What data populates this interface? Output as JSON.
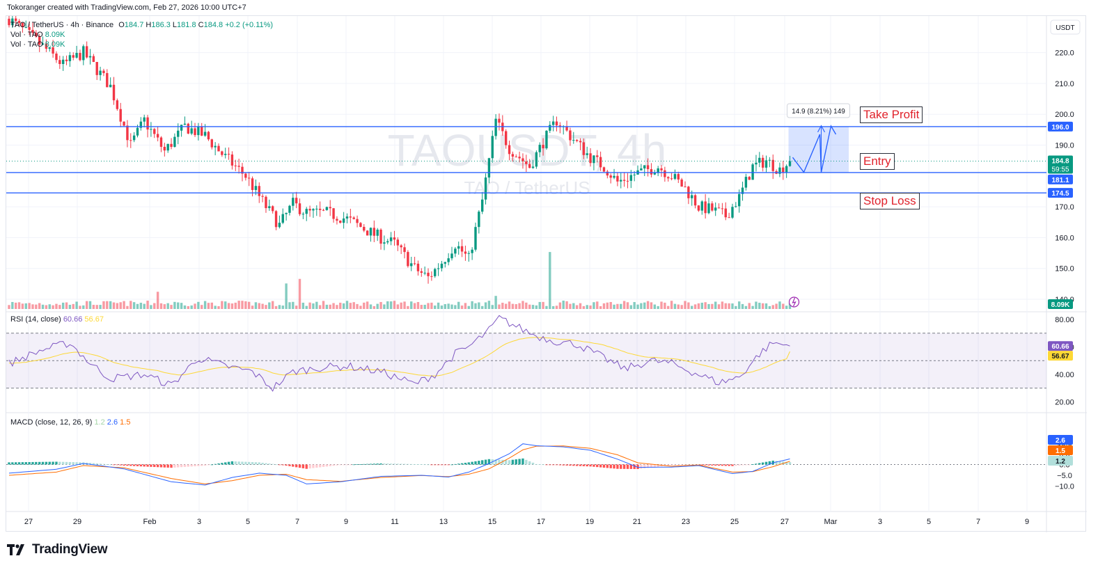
{
  "header": {
    "credit": "Tokoranger created with TradingView.com, Feb 27, 2026 10:00 UTC+7"
  },
  "symbol": {
    "line": "TAO / TetherUS · 4h · Binance",
    "open_label": "O",
    "open": "184.7",
    "high_label": "H",
    "high": "186.3",
    "low_label": "L",
    "low": "181.8",
    "close_label": "C",
    "close": "184.8",
    "change": "+0.2 (+0.11%)",
    "vol_label_1": "Vol · TAO",
    "vol_value_1": "8.09K",
    "vol_label_2": "Vol · TAO",
    "vol_value_2": "8.09K",
    "watermark_main": "TAOUSDT, 4h",
    "watermark_sub": "TAO / TetherUS",
    "currency": "USDT"
  },
  "annotations": {
    "take_profit": "Take Profit",
    "entry": "Entry",
    "stop_loss": "Stop Loss",
    "measure": "14.9 (8.21%) 149"
  },
  "colors": {
    "up": "#089981",
    "down": "#f23645",
    "level_line": "#2962ff",
    "rsi": "#7e57c2",
    "rsi_ma": "#fdd835",
    "macd": "#2962ff",
    "signal": "#ff6d00"
  },
  "price_labels": {
    "tp": "196.0",
    "last": "184.8",
    "countdown": "59:55",
    "entry": "181.1",
    "sl": "174.5",
    "volume": "8.09K"
  },
  "rsi": {
    "label": "RSI (14, close)",
    "value": "60.66",
    "ma": "56.67",
    "ticks": [
      "80.00",
      "60.00",
      "40.00",
      "20.00"
    ]
  },
  "macd": {
    "label": "MACD (close, 12, 26, 9)",
    "hist": "1.2",
    "macd": "2.6",
    "signal": "1.5",
    "ticks": [
      "10.0",
      "5.0",
      "0.0",
      "−5.0",
      "−10.0"
    ]
  },
  "brand": {
    "logo_text": "TradingView",
    "logo_icon": "tradingview-logo-icon"
  },
  "chart_data": {
    "type": "candlestick",
    "price_ticks": [
      "220.0",
      "210.0",
      "200.0",
      "190.0",
      "170.0",
      "160.0",
      "150.0",
      "140.0"
    ],
    "x_ticks": [
      "27",
      "29",
      "Feb",
      "3",
      "5",
      "7",
      "9",
      "11",
      "13",
      "15",
      "17",
      "19",
      "21",
      "23",
      "25",
      "27",
      "Mar",
      "3",
      "5",
      "7",
      "9"
    ],
    "levels": {
      "take_profit": 196.0,
      "entry": 181.1,
      "stop_loss": 174.5
    },
    "ohlc_waypoints": [
      [
        0,
        231
      ],
      [
        10,
        222
      ],
      [
        16,
        216
      ],
      [
        22,
        220
      ],
      [
        30,
        209
      ],
      [
        36,
        190
      ],
      [
        40,
        198
      ],
      [
        46,
        188
      ],
      [
        52,
        196
      ],
      [
        58,
        193
      ],
      [
        64,
        186
      ],
      [
        70,
        180
      ],
      [
        76,
        170
      ],
      [
        80,
        164
      ],
      [
        84,
        171
      ],
      [
        88,
        168
      ],
      [
        94,
        168
      ],
      [
        100,
        166
      ],
      [
        108,
        161
      ],
      [
        114,
        158
      ],
      [
        120,
        150
      ],
      [
        124,
        147
      ],
      [
        128,
        152
      ],
      [
        132,
        158
      ],
      [
        136,
        153
      ],
      [
        140,
        172
      ],
      [
        144,
        198
      ],
      [
        148,
        189
      ],
      [
        154,
        183
      ],
      [
        158,
        191
      ],
      [
        162,
        198
      ],
      [
        166,
        193
      ],
      [
        172,
        186
      ],
      [
        176,
        183
      ],
      [
        180,
        178
      ],
      [
        186,
        181
      ],
      [
        192,
        183
      ],
      [
        196,
        180
      ],
      [
        200,
        176
      ],
      [
        204,
        170
      ],
      [
        208,
        169
      ],
      [
        212,
        167
      ],
      [
        216,
        173
      ],
      [
        220,
        183
      ],
      [
        224,
        185
      ],
      [
        228,
        182
      ],
      [
        231,
        184.8
      ]
    ],
    "volume_spikes": {
      "44": 4.5,
      "82": 4.2,
      "86": 5.0,
      "144": 4.5,
      "160": 10
    },
    "rsi_waypoints": [
      [
        0,
        48
      ],
      [
        10,
        58
      ],
      [
        18,
        63
      ],
      [
        24,
        48
      ],
      [
        30,
        37
      ],
      [
        40,
        40
      ],
      [
        48,
        32
      ],
      [
        56,
        52
      ],
      [
        64,
        46
      ],
      [
        72,
        42
      ],
      [
        78,
        30
      ],
      [
        84,
        42
      ],
      [
        92,
        45
      ],
      [
        100,
        46
      ],
      [
        110,
        42
      ],
      [
        120,
        33
      ],
      [
        126,
        40
      ],
      [
        132,
        55
      ],
      [
        136,
        60
      ],
      [
        142,
        72
      ],
      [
        145,
        81
      ],
      [
        150,
        75
      ],
      [
        156,
        68
      ],
      [
        162,
        64
      ],
      [
        168,
        62
      ],
      [
        176,
        52
      ],
      [
        182,
        44
      ],
      [
        190,
        50
      ],
      [
        196,
        48
      ],
      [
        204,
        40
      ],
      [
        210,
        34
      ],
      [
        216,
        38
      ],
      [
        222,
        55
      ],
      [
        226,
        63
      ],
      [
        231,
        60.7
      ]
    ],
    "macd_waypoints": [
      [
        0,
        -4
      ],
      [
        14,
        -2.2
      ],
      [
        22,
        0.5
      ],
      [
        34,
        -2
      ],
      [
        48,
        -8
      ],
      [
        58,
        -9.5
      ],
      [
        66,
        -6
      ],
      [
        74,
        -4
      ],
      [
        82,
        -5
      ],
      [
        88,
        -9
      ],
      [
        98,
        -8
      ],
      [
        110,
        -5.5
      ],
      [
        122,
        -5
      ],
      [
        130,
        -5.8
      ],
      [
        136,
        -3.5
      ],
      [
        142,
        0.5
      ],
      [
        148,
        5
      ],
      [
        152,
        9.6
      ],
      [
        156,
        8.7
      ],
      [
        164,
        8.2
      ],
      [
        172,
        6.6
      ],
      [
        180,
        2.5
      ],
      [
        186,
        -1.3
      ],
      [
        196,
        -1.2
      ],
      [
        204,
        -0.5
      ],
      [
        214,
        -4.2
      ],
      [
        220,
        -3.2
      ],
      [
        226,
        0.8
      ],
      [
        231,
        2.6
      ]
    ],
    "signal_waypoints": [
      [
        0,
        -5
      ],
      [
        14,
        -3.5
      ],
      [
        22,
        -0.5
      ],
      [
        34,
        -1.5
      ],
      [
        48,
        -6.5
      ],
      [
        58,
        -9
      ],
      [
        66,
        -7.5
      ],
      [
        74,
        -5
      ],
      [
        82,
        -4.5
      ],
      [
        88,
        -7
      ],
      [
        98,
        -7.8
      ],
      [
        110,
        -6
      ],
      [
        122,
        -5.1
      ],
      [
        130,
        -5.6
      ],
      [
        136,
        -4.5
      ],
      [
        142,
        -2
      ],
      [
        148,
        3
      ],
      [
        152,
        6.8
      ],
      [
        156,
        8.5
      ],
      [
        164,
        8.6
      ],
      [
        172,
        7.5
      ],
      [
        180,
        4.5
      ],
      [
        186,
        0.8
      ],
      [
        196,
        -0.8
      ],
      [
        204,
        -0.2
      ],
      [
        214,
        -3.5
      ],
      [
        220,
        -3.3
      ],
      [
        226,
        -1
      ],
      [
        231,
        1.5
      ]
    ]
  }
}
